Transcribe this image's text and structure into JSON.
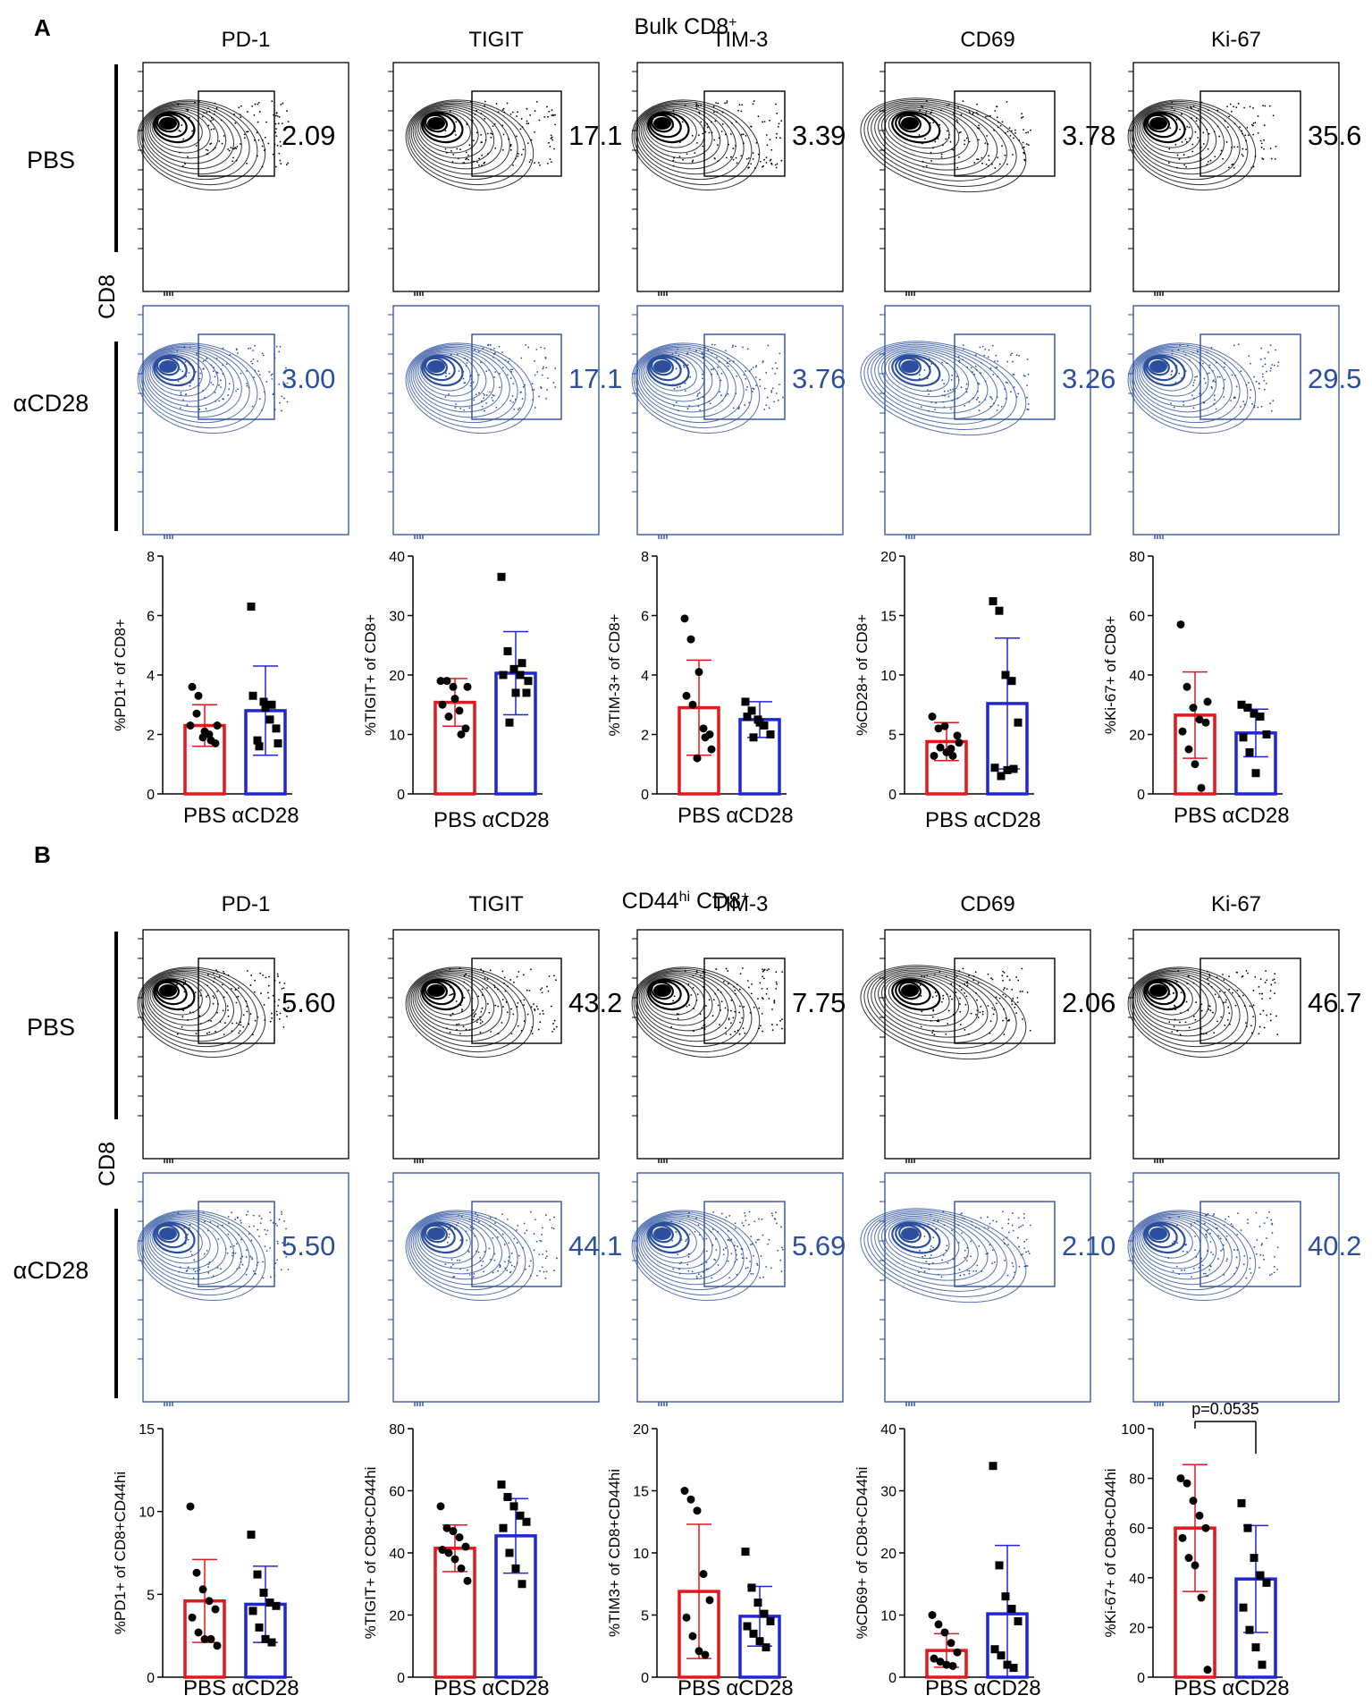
{
  "figure": {
    "colors": {
      "pbs": "#000000",
      "acd28": "#2b4f9e",
      "bar_pbs": "#e3171c",
      "bar_acd28": "#1f26d8"
    },
    "icons": {
      "flow_plot": "contour-density-icon",
      "gate": "rectangle-gate-icon"
    },
    "panels": [
      {
        "letter": "A",
        "title_main": "Bulk CD8",
        "title_sup": "+",
        "title_hi": "",
        "ylabel": "CD8",
        "row_labels": [
          "PBS",
          "αCD28"
        ],
        "markers": [
          "PD-1",
          "TIGIT",
          "TIM-3",
          "CD69",
          "Ki-67"
        ],
        "pbs_values": [
          "2.09",
          "17.1",
          "3.39",
          "3.78",
          "35.6"
        ],
        "acd28_values": [
          "3.00",
          "17.1",
          "3.76",
          "3.26",
          "29.5"
        ]
      },
      {
        "letter": "B",
        "title_main": "CD44",
        "title_hi": "hi",
        "title_main2": " CD8",
        "title_sup": "+",
        "ylabel": "CD8",
        "row_labels": [
          "PBS",
          "αCD28"
        ],
        "markers": [
          "PD-1",
          "TIGIT",
          "TIM-3",
          "CD69",
          "Ki-67"
        ],
        "pbs_values": [
          "5.60",
          "43.2",
          "7.75",
          "2.06",
          "46.7"
        ],
        "acd28_values": [
          "5.50",
          "44.1",
          "5.69",
          "2.10",
          "40.2"
        ]
      }
    ]
  },
  "chart_data": [
    {
      "type": "bar",
      "panel": "A",
      "ylabel": "%PD1+ of CD8+",
      "categories": [
        "PBS",
        "αCD28"
      ],
      "ylim": [
        0,
        8
      ],
      "yticks": [
        0,
        2,
        4,
        6,
        8
      ],
      "means": [
        2.3,
        2.8
      ],
      "sd": [
        0.7,
        1.5
      ],
      "points": [
        [
          2.3,
          2.7,
          1.9,
          2.0,
          1.7,
          3.6,
          3.3,
          2.1,
          1.8,
          2.3
        ],
        [
          6.3,
          1.8,
          3.1,
          2.5,
          2.2,
          3.3,
          1.6,
          2.9,
          3.0,
          1.7
        ]
      ]
    },
    {
      "type": "bar",
      "panel": "A",
      "ylabel": "%TIGIT+ of CD8+",
      "categories": [
        "PBS",
        "αCD28"
      ],
      "ylim": [
        0,
        40
      ],
      "yticks": [
        0,
        10,
        20,
        30,
        40
      ],
      "means": [
        15.4,
        20.3
      ],
      "sd": [
        4.0,
        7.0
      ],
      "points": [
        [
          19,
          19,
          18,
          14,
          11,
          15,
          13,
          16,
          10,
          18
        ],
        [
          36.5,
          24,
          21,
          20,
          17,
          20,
          12,
          17,
          22,
          19
        ]
      ]
    },
    {
      "type": "bar",
      "panel": "A",
      "ylabel": "%TIM-3+ of CD8+",
      "categories": [
        "PBS",
        "αCD28"
      ],
      "ylim": [
        0,
        8
      ],
      "yticks": [
        0,
        2,
        4,
        6,
        8
      ],
      "means": [
        2.9,
        2.5
      ],
      "sd": [
        1.6,
        0.6
      ],
      "points": [
        [
          5.9,
          5.2,
          1.2,
          2.2,
          2.0,
          3.3,
          3.0,
          4.1,
          1.9,
          1.5
        ],
        [
          3.1,
          2.8,
          2.5,
          2.3,
          2.0,
          2.6,
          1.9,
          2.4
        ]
      ]
    },
    {
      "type": "bar",
      "panel": "A",
      "ylabel": "%CD28+ of CD8+",
      "categories": [
        "PBS",
        "αCD28"
      ],
      "ylim": [
        0,
        20
      ],
      "yticks": [
        0,
        5,
        10,
        15,
        20
      ],
      "means": [
        4.4,
        7.6
      ],
      "sd": [
        1.6,
        5.5
      ],
      "points": [
        [
          6.5,
          5.5,
          5.7,
          3.8,
          4.9,
          3.2,
          3.9,
          3.5,
          3.2,
          4.3
        ],
        [
          16.2,
          15.4,
          10.0,
          9.5,
          6.0,
          2.2,
          1.5,
          2.0,
          2.1
        ]
      ]
    },
    {
      "type": "bar",
      "panel": "A",
      "ylabel": "%Ki-67+ of CD8+",
      "categories": [
        "PBS",
        "αCD28"
      ],
      "ylim": [
        0,
        80
      ],
      "yticks": [
        0,
        20,
        40,
        60,
        80
      ],
      "means": [
        26.5,
        20.5
      ],
      "sd": [
        14.5,
        8.0
      ],
      "points": [
        [
          57,
          36,
          29,
          25,
          24,
          21,
          15,
          10,
          2,
          31
        ],
        [
          30,
          29,
          27,
          26,
          20,
          19,
          14,
          7
        ]
      ]
    },
    {
      "type": "bar",
      "panel": "B",
      "ylabel": "%PD1+ of CD8+CD44hi",
      "categories": [
        "PBS",
        "αCD28"
      ],
      "ylim": [
        0,
        15
      ],
      "yticks": [
        0,
        5,
        10,
        15
      ],
      "means": [
        4.6,
        4.4
      ],
      "sd": [
        2.5,
        2.3
      ],
      "points": [
        [
          10.3,
          6.3,
          5.3,
          4.6,
          4.1,
          3.6,
          2.7,
          2.3,
          2.3,
          1.9
        ],
        [
          8.6,
          6.2,
          5.1,
          4.5,
          4.3,
          4.0,
          3.0,
          2.3,
          2.1
        ]
      ]
    },
    {
      "type": "bar",
      "panel": "B",
      "ylabel": "%TIGIT+ of CD8+CD44hi",
      "categories": [
        "PBS",
        "αCD28"
      ],
      "ylim": [
        0,
        80
      ],
      "yticks": [
        0,
        20,
        40,
        60,
        80
      ],
      "means": [
        41.5,
        45.5
      ],
      "sd": [
        7.5,
        12
      ],
      "points": [
        [
          55,
          48,
          47,
          45,
          42,
          41,
          40,
          38,
          35,
          31
        ],
        [
          62,
          58,
          55,
          52,
          50,
          48,
          40,
          35,
          30
        ]
      ]
    },
    {
      "type": "bar",
      "panel": "B",
      "ylabel": "%TIM3+ of CD8+CD44hi",
      "categories": [
        "PBS",
        "αCD28"
      ],
      "ylim": [
        0,
        20
      ],
      "yticks": [
        0,
        5,
        10,
        15,
        20
      ],
      "means": [
        6.9,
        4.9
      ],
      "sd": [
        5.4,
        2.4
      ],
      "points": [
        [
          15,
          14.3,
          13.4,
          8.3,
          6.2,
          4.8,
          3.3,
          2.1,
          1.8
        ],
        [
          10.1,
          7.2,
          6.0,
          5.1,
          4.5,
          4.1,
          3.5,
          2.9,
          2.4
        ]
      ]
    },
    {
      "type": "bar",
      "panel": "B",
      "ylabel": "%CD69+ of CD8+CD44hi",
      "categories": [
        "PBS",
        "αCD28"
      ],
      "ylim": [
        0,
        40
      ],
      "yticks": [
        0,
        10,
        20,
        30,
        40
      ],
      "means": [
        4.3,
        10.2
      ],
      "sd": [
        2.7,
        11
      ],
      "points": [
        [
          10,
          8.5,
          7.2,
          5.5,
          4.0,
          3.0,
          2.5,
          2.0,
          1.8
        ],
        [
          34,
          18,
          13,
          11,
          9,
          4.5,
          3.5,
          2.0,
          1.5
        ]
      ]
    },
    {
      "type": "bar",
      "panel": "B",
      "ylabel": "%Ki-67+ of CD8+CD44hi",
      "categories": [
        "PBS",
        "αCD28"
      ],
      "ylim": [
        0,
        100
      ],
      "yticks": [
        0,
        20,
        40,
        60,
        80,
        100
      ],
      "means": [
        60,
        39.5
      ],
      "sd": [
        25.5,
        21.5
      ],
      "points": [
        [
          80,
          78,
          71,
          65,
          60,
          56,
          48,
          45,
          32,
          3
        ],
        [
          70,
          60,
          48,
          41,
          38,
          28,
          19,
          12,
          5
        ]
      ],
      "annotation": "p=0.0535"
    }
  ]
}
